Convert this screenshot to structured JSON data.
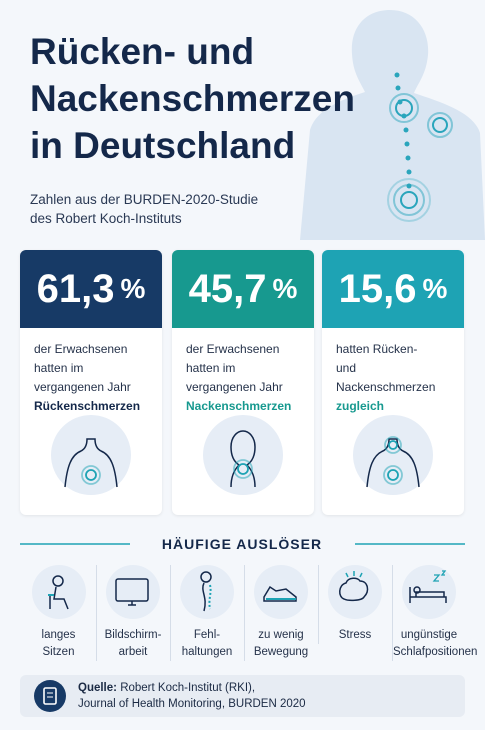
{
  "header": {
    "title_lines": [
      "Rücken- und",
      "Nackenschmerzen",
      "in Deutschland"
    ],
    "subtitle_lines": [
      "Zahlen aus der BURDEN-2020-Studie",
      "des Robert Koch-Instituts"
    ]
  },
  "stats": [
    {
      "value": "61,3",
      "unit": "%",
      "lines": [
        "der Erwachsenen",
        "hatten im",
        "vergangenen Jahr"
      ],
      "highlight": "Rückenschmerzen",
      "color": "#173a66",
      "highlight_color": "#14284a"
    },
    {
      "value": "45,7",
      "unit": "%",
      "lines": [
        "der Erwachsenen",
        "hatten im vergangenen Jahr"
      ],
      "highlight": "Nackenschmerzen",
      "color": "#17998f",
      "highlight_color": "#17998f"
    },
    {
      "value": "15,6",
      "unit": "%",
      "lines": [
        "hatten Rücken-",
        "und Nackenschmerzen"
      ],
      "highlight": "zugleich",
      "color": "#1ea3b4",
      "highlight_color": "#17998f"
    }
  ],
  "triggers": {
    "title": "HÄUFIGE AUSLÖSER",
    "items": [
      [
        "langes",
        "Sitzen"
      ],
      [
        "Bildschirm-",
        "arbeit"
      ],
      [
        "Fehl-",
        "haltungen"
      ],
      [
        "zu wenig",
        "Bewegung"
      ],
      [
        "Stress"
      ],
      [
        "ungünstige",
        "Schlafpositionen"
      ]
    ]
  },
  "source": {
    "label": "Quelle:",
    "lines": [
      "Robert Koch-Institut (RKI),",
      "Journal of Health Monitoring, BURDEN 2020"
    ]
  }
}
